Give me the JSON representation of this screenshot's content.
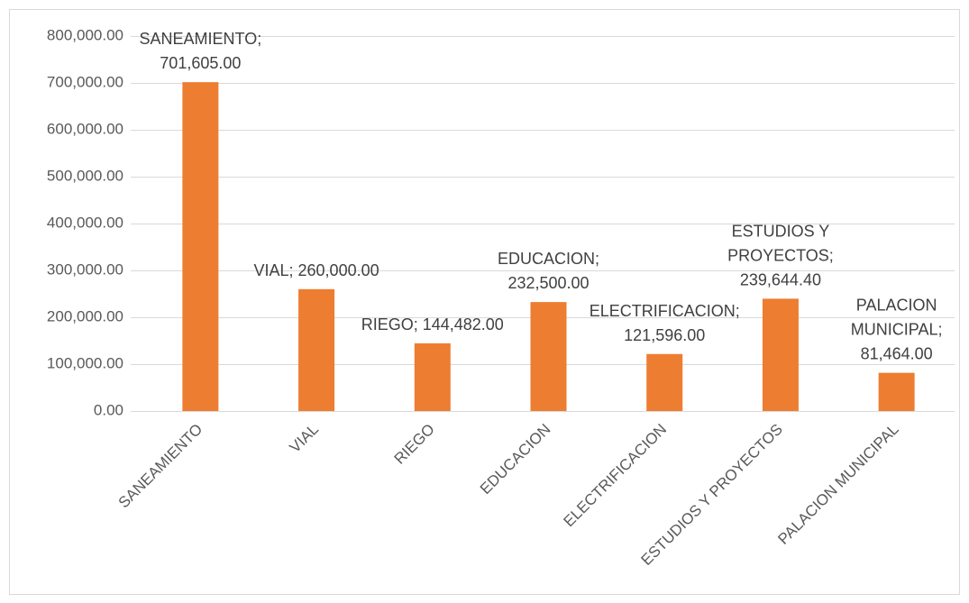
{
  "chart_data": {
    "type": "bar",
    "categories": [
      "SANEAMIENTO",
      "VIAL",
      "RIEGO",
      "EDUCACION",
      "ELECTRIFICACION",
      "ESTUDIOS Y PROYECTOS",
      "PALACION MUNICIPAL"
    ],
    "values": [
      701605,
      260000,
      144482,
      232500,
      121596,
      239644.4,
      81464
    ],
    "value_labels": [
      "SANEAMIENTO; 701,605.00",
      "VIAL; 260,000.00",
      "RIEGO; 144,482.00",
      "EDUCACION; 232,500.00",
      "ELECTRIFICACION; 121,596.00",
      "ESTUDIOS Y PROYECTOS; 239,644.40",
      "PALACION MUNICIPAL; 81,464.00"
    ],
    "color": "#ed7d31",
    "ylim": [
      0,
      800000
    ],
    "yticks": [
      {
        "value": 0,
        "label": "0.00"
      },
      {
        "value": 100000,
        "label": "100,000.00"
      },
      {
        "value": 200000,
        "label": "200,000.00"
      },
      {
        "value": 300000,
        "label": "300,000.00"
      },
      {
        "value": 400000,
        "label": "400,000.00"
      },
      {
        "value": 500000,
        "label": "500,000.00"
      },
      {
        "value": 600000,
        "label": "600,000.00"
      },
      {
        "value": 700000,
        "label": "700,000.00"
      },
      {
        "value": 800000,
        "label": "800,000.00"
      }
    ],
    "grid": true
  }
}
